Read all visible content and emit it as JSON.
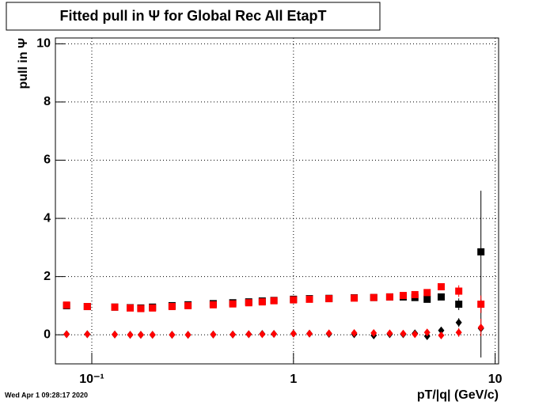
{
  "chart_data": {
    "type": "scatter",
    "title": "Fitted pull in  Ψ  for Global Rec All EtapT",
    "y_label": "pull in  Ψ",
    "x_label": "pT/|q| (GeV/c)",
    "timestamp": "Wed Apr  1 09:28:17 2020",
    "x_log": true,
    "grid": true,
    "xlim": [
      0.066,
      10.4
    ],
    "ylim": [
      -1,
      10.2
    ],
    "xticks": [
      {
        "value": 0.1,
        "label": "10⁻¹"
      },
      1,
      10
    ],
    "yticks": [
      0,
      2,
      4,
      6,
      8,
      10
    ],
    "x": [
      0.075,
      0.095,
      0.13,
      0.155,
      0.175,
      0.2,
      0.25,
      0.3,
      0.4,
      0.5,
      0.6,
      0.7,
      0.8,
      1.0,
      1.2,
      1.5,
      2.0,
      2.5,
      3.0,
      3.5,
      4.0,
      4.6,
      5.4,
      6.6,
      8.5
    ],
    "series": [
      {
        "color": "#000000",
        "marker": "square",
        "values": [
          1.0,
          0.97,
          0.95,
          0.93,
          0.92,
          0.95,
          1.0,
          1.03,
          1.07,
          1.1,
          1.13,
          1.16,
          1.18,
          1.22,
          1.24,
          1.25,
          1.27,
          1.28,
          1.3,
          1.3,
          1.28,
          1.22,
          1.3,
          1.05,
          2.85
        ],
        "yerr": [
          0.03,
          0.03,
          0.03,
          0.03,
          0.03,
          0.02,
          0.02,
          0.02,
          0.02,
          0.02,
          0.02,
          0.02,
          0.02,
          0.02,
          0.02,
          0.02,
          0.03,
          0.03,
          0.04,
          0.05,
          0.06,
          0.08,
          0.1,
          0.2,
          2.1
        ]
      },
      {
        "color": "#000000",
        "marker": "diamond",
        "values": [
          0.02,
          0.02,
          0.01,
          0.0,
          0.0,
          0.0,
          0.0,
          0.0,
          0.01,
          0.01,
          0.02,
          0.03,
          0.03,
          0.04,
          0.04,
          0.03,
          0.02,
          -0.02,
          0.02,
          0.02,
          0.05,
          -0.05,
          0.15,
          0.42,
          0.22
        ],
        "yerr": [
          0.03,
          0.03,
          0.03,
          0.03,
          0.03,
          0.02,
          0.02,
          0.02,
          0.02,
          0.02,
          0.02,
          0.02,
          0.02,
          0.02,
          0.02,
          0.02,
          0.03,
          0.03,
          0.04,
          0.05,
          0.06,
          0.08,
          0.1,
          0.15,
          1.0
        ]
      },
      {
        "color": "#ff0000",
        "marker": "square",
        "values": [
          1.02,
          0.97,
          0.95,
          0.92,
          0.9,
          0.92,
          0.97,
          1.0,
          1.03,
          1.06,
          1.1,
          1.13,
          1.17,
          1.2,
          1.22,
          1.24,
          1.26,
          1.28,
          1.3,
          1.35,
          1.38,
          1.45,
          1.65,
          1.5,
          1.05
        ],
        "yerr": [
          0.03,
          0.03,
          0.03,
          0.03,
          0.03,
          0.02,
          0.02,
          0.02,
          0.02,
          0.02,
          0.02,
          0.02,
          0.02,
          0.02,
          0.02,
          0.02,
          0.03,
          0.03,
          0.04,
          0.05,
          0.06,
          0.08,
          0.1,
          0.2,
          0.3
        ]
      },
      {
        "color": "#ff0000",
        "marker": "diamond",
        "values": [
          0.02,
          0.02,
          0.01,
          0.0,
          0.0,
          0.0,
          0.0,
          0.0,
          0.01,
          0.01,
          0.02,
          0.02,
          0.03,
          0.04,
          0.04,
          0.05,
          0.06,
          0.06,
          0.05,
          0.04,
          0.02,
          0.08,
          -0.02,
          0.08,
          0.25
        ],
        "yerr": [
          0.03,
          0.03,
          0.03,
          0.03,
          0.03,
          0.02,
          0.02,
          0.02,
          0.02,
          0.02,
          0.02,
          0.02,
          0.02,
          0.02,
          0.02,
          0.02,
          0.03,
          0.03,
          0.04,
          0.05,
          0.06,
          0.08,
          0.1,
          0.15,
          0.3
        ]
      }
    ]
  }
}
